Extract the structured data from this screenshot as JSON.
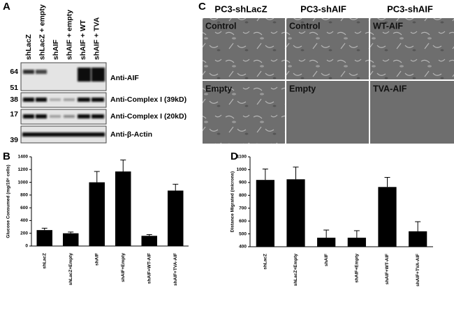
{
  "panel_labels": [
    "A",
    "B",
    "C",
    "D"
  ],
  "blot": {
    "lanes": [
      "shLacZ",
      "shLacZ + empty",
      "shAIF",
      "shAIF + empty",
      "shAIF + WT",
      "shAIF + TVA"
    ],
    "markers": [
      "64",
      "51",
      "38",
      "17",
      "39"
    ],
    "antibodies": [
      "Anti-AIF",
      "Anti-Complex I (39kD)",
      "Anti-Complex I (20kD)",
      "Anti-β-Actin"
    ]
  },
  "micrographs": {
    "columns": [
      "PC3-shLacZ",
      "PC3-shAIF",
      "PC3-shAIF"
    ],
    "labels": [
      [
        "Control",
        "Control",
        "WT-AIF"
      ],
      [
        "Empty",
        "Empty",
        "TVA-AIF"
      ]
    ]
  },
  "chart_data": [
    {
      "type": "bar",
      "ylabel": "Glucose Consumed (mg/10⁶ cells)",
      "categories": [
        "shLacZ",
        "shLacZ+Empty",
        "shAIF",
        "shAIF+Empty",
        "shAIF+WT-AIF",
        "shAIF+TVA-AIF"
      ],
      "values": [
        250,
        200,
        1000,
        1170,
        160,
        870
      ],
      "errors": [
        30,
        20,
        170,
        180,
        20,
        100
      ],
      "color": "#000000",
      "ylim": [
        0,
        1400
      ],
      "yticks": [
        0,
        200,
        400,
        600,
        800,
        1000,
        1200,
        1400
      ]
    },
    {
      "type": "bar",
      "ylabel": "Distance Migrated (microns)",
      "categories": [
        "shLacZ",
        "shLacZ+Empty",
        "shAIF",
        "shAIF+Empty",
        "shAIF+WT-AIF",
        "shAIF+TVA-AIF"
      ],
      "values": [
        920,
        925,
        470,
        470,
        865,
        520
      ],
      "errors": [
        85,
        95,
        60,
        55,
        75,
        75
      ],
      "color": "#000000",
      "ylim": [
        400,
        1100
      ],
      "yticks": [
        400,
        500,
        600,
        700,
        800,
        900,
        1000,
        1100
      ]
    }
  ]
}
